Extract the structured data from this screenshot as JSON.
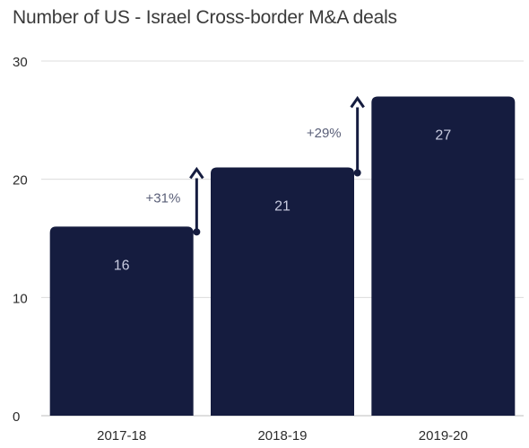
{
  "chart_data": {
    "type": "bar",
    "title": "Number of US - Israel Cross-border M&A deals",
    "xlabel": "",
    "ylabel": "",
    "categories": [
      "2017-18",
      "2018-19",
      "2019-20"
    ],
    "values": [
      16,
      21,
      27
    ],
    "ylim": [
      0,
      30
    ],
    "yticks": [
      0,
      10,
      20,
      30
    ],
    "grid": true,
    "bar_color": "#151c3f",
    "value_label_color": "#c9cce0",
    "annotations": [
      {
        "text": "+31%",
        "from_index": 0,
        "to_index": 1
      },
      {
        "text": "+29%",
        "from_index": 1,
        "to_index": 2
      }
    ]
  }
}
